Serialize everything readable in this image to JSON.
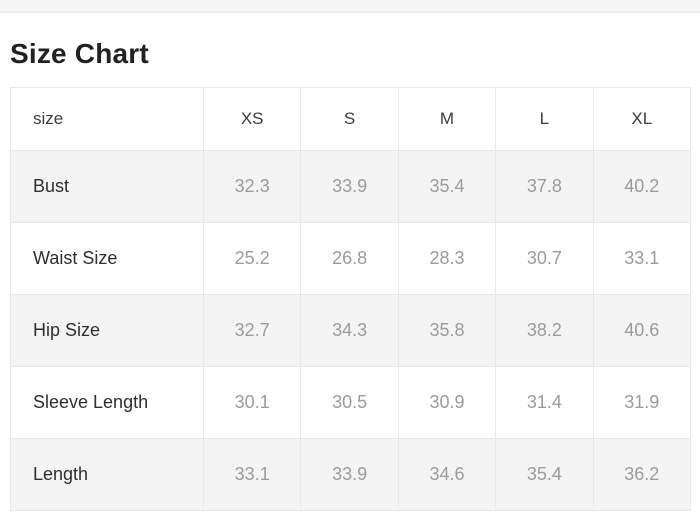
{
  "page": {
    "title": "Size Chart"
  },
  "colors": {
    "row_alt_background": "#f4f4f4",
    "border": "#e9e9e9",
    "top_bar_background": "#f5f5f6",
    "label_text": "#2f2f2f",
    "value_text": "#9b9b9b"
  },
  "table": {
    "columns": [
      "size",
      "XS",
      "S",
      "M",
      "L",
      "XL"
    ],
    "rows": [
      {
        "label": "Bust",
        "values": [
          "32.3",
          "33.9",
          "35.4",
          "37.8",
          "40.2"
        ]
      },
      {
        "label": "Waist Size",
        "values": [
          "25.2",
          "26.8",
          "28.3",
          "30.7",
          "33.1"
        ]
      },
      {
        "label": "Hip Size",
        "values": [
          "32.7",
          "34.3",
          "35.8",
          "38.2",
          "40.6"
        ]
      },
      {
        "label": "Sleeve Length",
        "values": [
          "30.1",
          "30.5",
          "30.9",
          "31.4",
          "31.9"
        ]
      },
      {
        "label": "Length",
        "values": [
          "33.1",
          "33.9",
          "34.6",
          "35.4",
          "36.2"
        ]
      }
    ]
  }
}
